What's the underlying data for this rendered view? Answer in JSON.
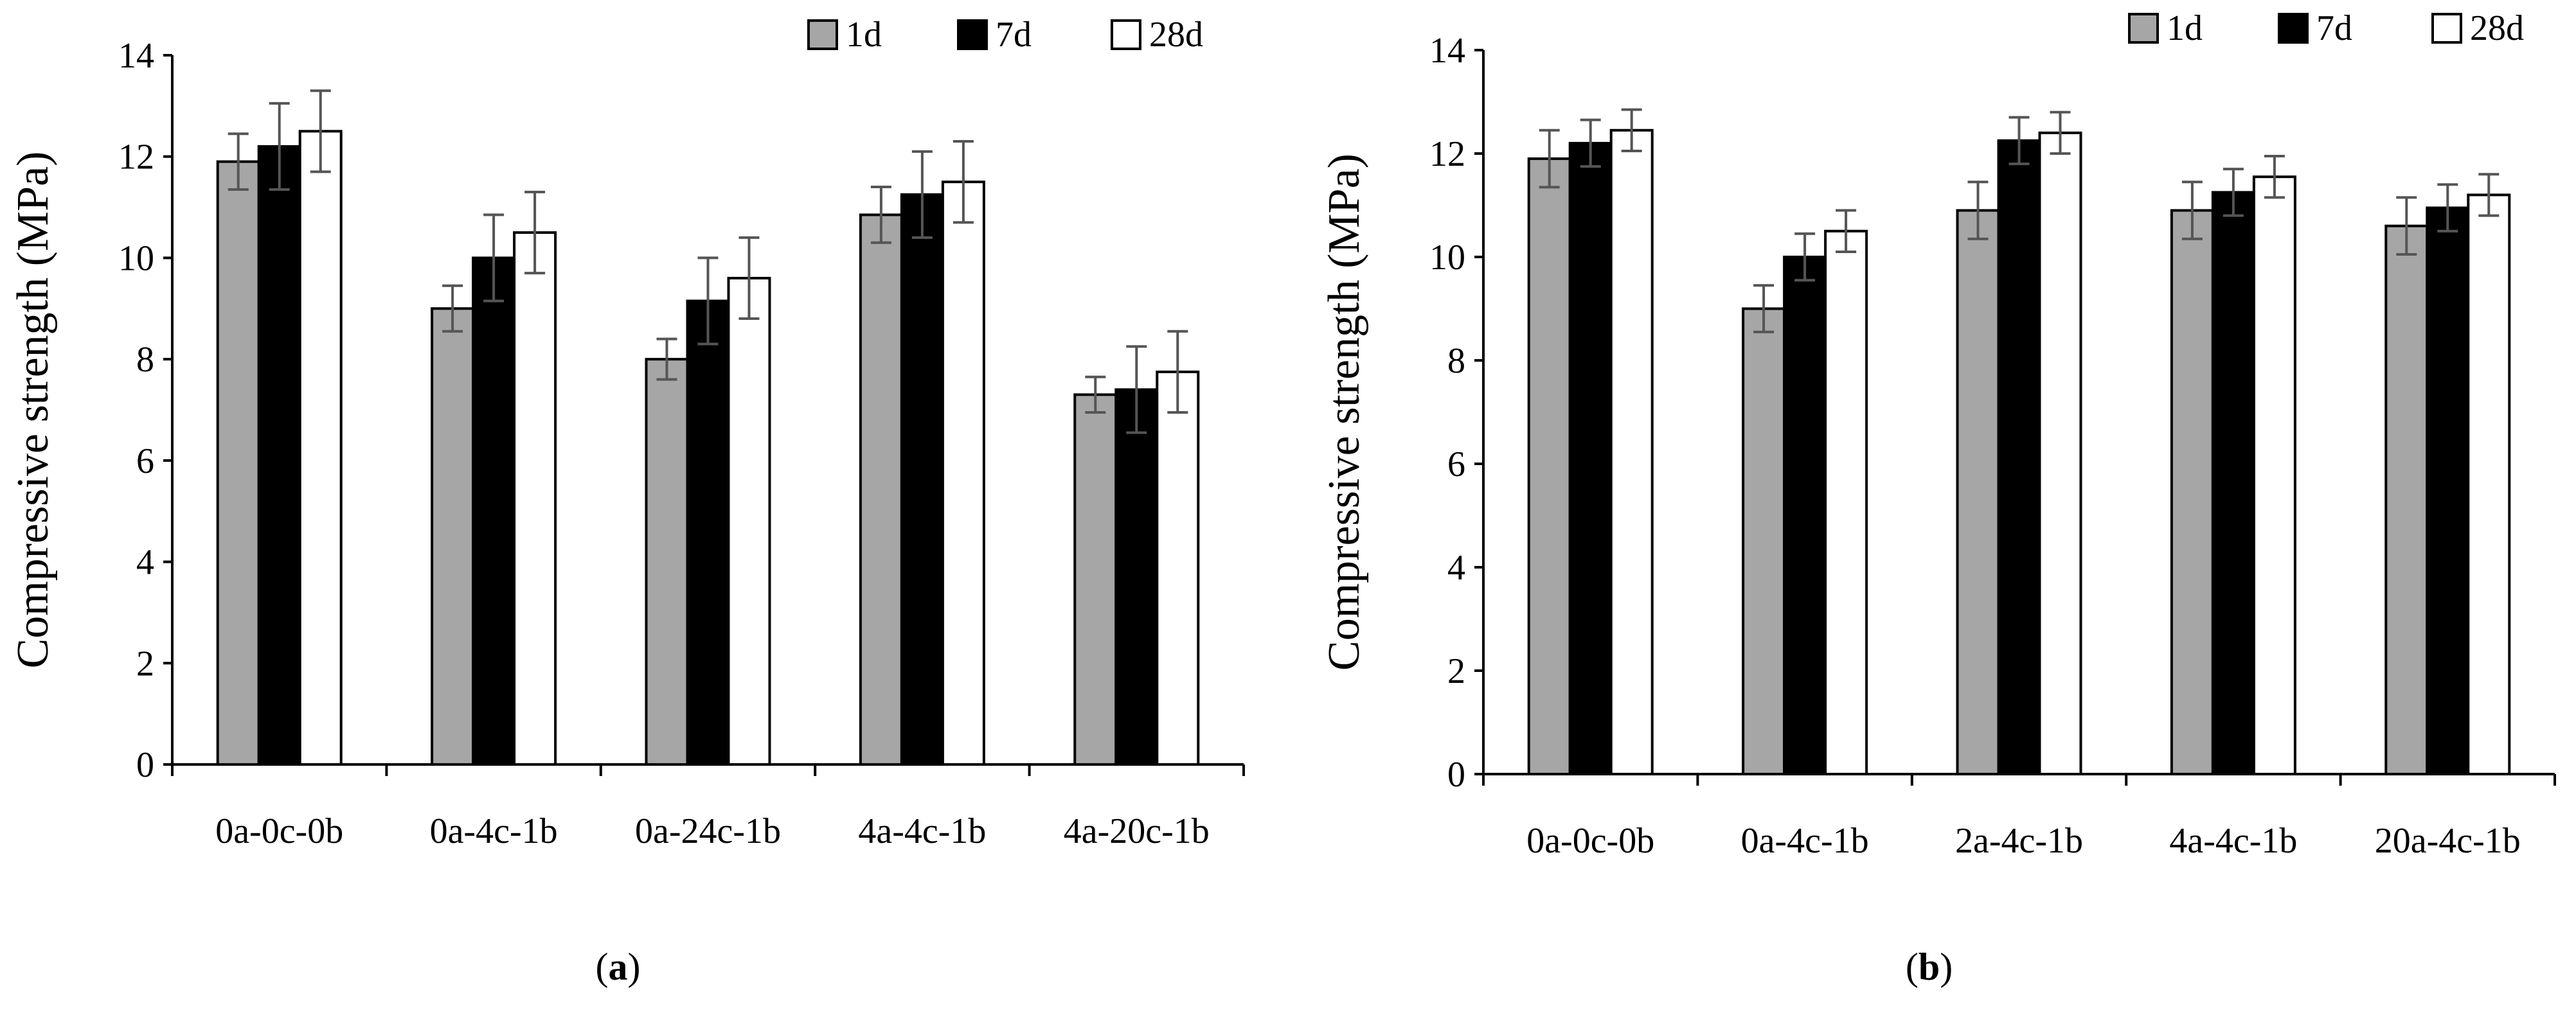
{
  "figure": {
    "panels": [
      "a",
      "b"
    ]
  },
  "chart_data": [
    {
      "type": "bar",
      "panel_label_open": "(",
      "panel_letter": "a",
      "panel_label_close": ")",
      "ylabel": "Compressive strength (MPa)",
      "xlabel": "",
      "ylim": [
        0,
        14
      ],
      "yticks": [
        0,
        2,
        4,
        6,
        8,
        10,
        12,
        14
      ],
      "legend_position": "top-right",
      "categories": [
        "0a-0c-0b",
        "0a-4c-1b",
        "0a-24c-1b",
        "4a-4c-1b",
        "4a-20c-1b"
      ],
      "series": [
        {
          "name": "1d",
          "color": "#a6a6a6",
          "values": [
            11.9,
            9.0,
            8.0,
            10.85,
            7.3
          ],
          "errors": [
            0.55,
            0.45,
            0.4,
            0.55,
            0.35
          ]
        },
        {
          "name": "7d",
          "color": "#000000",
          "values": [
            12.2,
            10.0,
            9.15,
            11.25,
            7.4
          ],
          "errors": [
            0.85,
            0.85,
            0.85,
            0.85,
            0.85
          ]
        },
        {
          "name": "28d",
          "color": "#ffffff",
          "values": [
            12.5,
            10.5,
            9.6,
            11.5,
            7.75
          ],
          "errors": [
            0.8,
            0.8,
            0.8,
            0.8,
            0.8
          ]
        }
      ]
    },
    {
      "type": "bar",
      "panel_label_open": "(",
      "panel_letter": "b",
      "panel_label_close": ")",
      "ylabel": "Compressive strength (MPa)",
      "xlabel": "",
      "ylim": [
        0,
        14
      ],
      "yticks": [
        0,
        2,
        4,
        6,
        8,
        10,
        12,
        14
      ],
      "legend_position": "top-right",
      "categories": [
        "0a-0c-0b",
        "0a-4c-1b",
        "2a-4c-1b",
        "4a-4c-1b",
        "20a-4c-1b"
      ],
      "series": [
        {
          "name": "1d",
          "color": "#a6a6a6",
          "values": [
            11.9,
            9.0,
            10.9,
            10.9,
            10.6
          ],
          "errors": [
            0.55,
            0.45,
            0.55,
            0.55,
            0.55
          ]
        },
        {
          "name": "7d",
          "color": "#000000",
          "values": [
            12.2,
            10.0,
            12.25,
            11.25,
            10.95
          ],
          "errors": [
            0.45,
            0.45,
            0.45,
            0.45,
            0.45
          ]
        },
        {
          "name": "28d",
          "color": "#ffffff",
          "values": [
            12.45,
            10.5,
            12.4,
            11.55,
            11.2
          ],
          "errors": [
            0.4,
            0.4,
            0.4,
            0.4,
            0.4
          ]
        }
      ]
    }
  ]
}
